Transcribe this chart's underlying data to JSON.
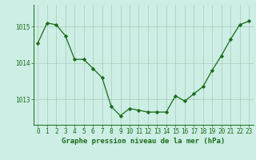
{
  "x": [
    0,
    1,
    2,
    3,
    4,
    5,
    6,
    7,
    8,
    9,
    10,
    11,
    12,
    13,
    14,
    15,
    16,
    17,
    18,
    19,
    20,
    21,
    22,
    23
  ],
  "y": [
    1014.55,
    1015.1,
    1015.05,
    1014.75,
    1014.1,
    1014.1,
    1013.85,
    1013.6,
    1012.8,
    1012.55,
    1012.75,
    1012.7,
    1012.65,
    1012.65,
    1012.65,
    1013.1,
    1012.95,
    1013.15,
    1013.35,
    1013.8,
    1014.2,
    1014.65,
    1015.05,
    1015.15
  ],
  "line_color": "#1a6b1a",
  "marker_color": "#1a6b1a",
  "bg_color": "#cceee4",
  "grid_color": "#aaccbb",
  "axis_color": "#1a6b1a",
  "xlabel": "Graphe pression niveau de la mer (hPa)",
  "xlabel_fontsize": 6.5,
  "tick_fontsize": 5.5,
  "ytick_values": [
    1013,
    1014,
    1015
  ],
  "ylim": [
    1012.3,
    1015.6
  ],
  "xlim": [
    -0.5,
    23.5
  ]
}
